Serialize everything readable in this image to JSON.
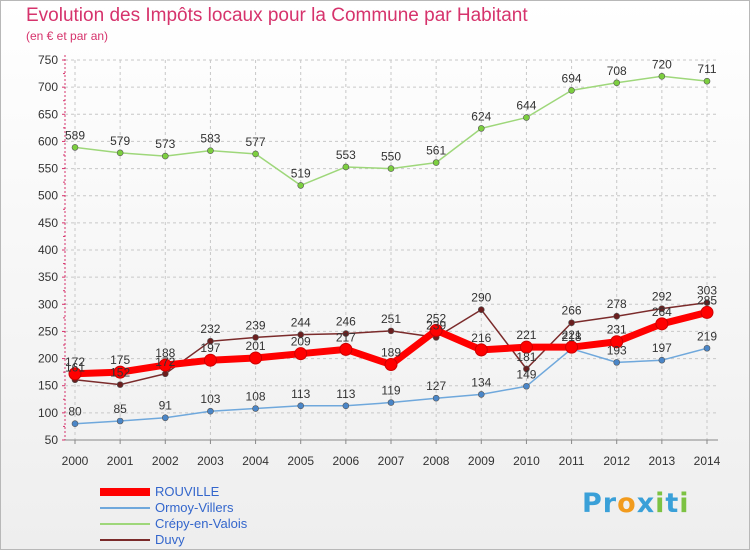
{
  "chart_data": {
    "type": "line",
    "title": "Evolution des Impôts locaux pour la Commune par Habitant",
    "subtitle": "(en € et par an)",
    "categories": [
      "2000",
      "2001",
      "2002",
      "2003",
      "2004",
      "2005",
      "2006",
      "2007",
      "2008",
      "2009",
      "2010",
      "2011",
      "2012",
      "2013",
      "2014"
    ],
    "ylim": [
      50,
      750
    ],
    "yticks": [
      50,
      100,
      150,
      200,
      250,
      300,
      350,
      400,
      450,
      500,
      550,
      600,
      650,
      700,
      750
    ],
    "grid": true,
    "series": [
      {
        "name": "ROUVILLE",
        "color": "#ff0000",
        "point_color": "#ff0000",
        "width": 7,
        "marker": 6,
        "values": [
          172,
          175,
          188,
          197,
          201,
          209,
          217,
          189,
          252,
          216,
          221,
          221,
          231,
          264,
          285
        ]
      },
      {
        "name": "Ormoy-Villers",
        "color": "#6fa8dc",
        "point_color": "#4a86c8",
        "width": 1.5,
        "marker": 3,
        "values": [
          80,
          85,
          91,
          103,
          108,
          113,
          113,
          119,
          127,
          134,
          149,
          218,
          193,
          197,
          219
        ]
      },
      {
        "name": "Crépy-en-Valois",
        "color": "#9ed77a",
        "point_color": "#7ccf3f",
        "width": 1.5,
        "marker": 3,
        "values": [
          589,
          579,
          573,
          583,
          577,
          519,
          553,
          550,
          561,
          624,
          644,
          694,
          708,
          720,
          711
        ]
      },
      {
        "name": "Duvy",
        "color": "#7b2b2b",
        "point_color": "#6b1f1f",
        "width": 1.5,
        "marker": 3,
        "values": [
          161,
          152,
          172,
          232,
          239,
          244,
          246,
          251,
          239,
          290,
          181,
          266,
          278,
          292,
          303
        ]
      }
    ]
  },
  "legend": {
    "items": [
      {
        "name": "ROUVILLE",
        "color": "#ff0000"
      },
      {
        "name": "Ormoy-Villers",
        "color": "#6fa8dc"
      },
      {
        "name": "Crépy-en-Valois",
        "color": "#9ed77a"
      },
      {
        "name": "Duvy",
        "color": "#7b2b2b"
      }
    ]
  },
  "logo": {
    "text": "Proxiti",
    "letters": [
      "P",
      "r",
      "o",
      "x",
      "i",
      "t",
      "i"
    ],
    "colors": [
      "#3aa0d8",
      "#3aa0d8",
      "#f29b1d",
      "#3aa0d8",
      "#7cc242",
      "#3aa0d8",
      "#7cc242"
    ]
  }
}
